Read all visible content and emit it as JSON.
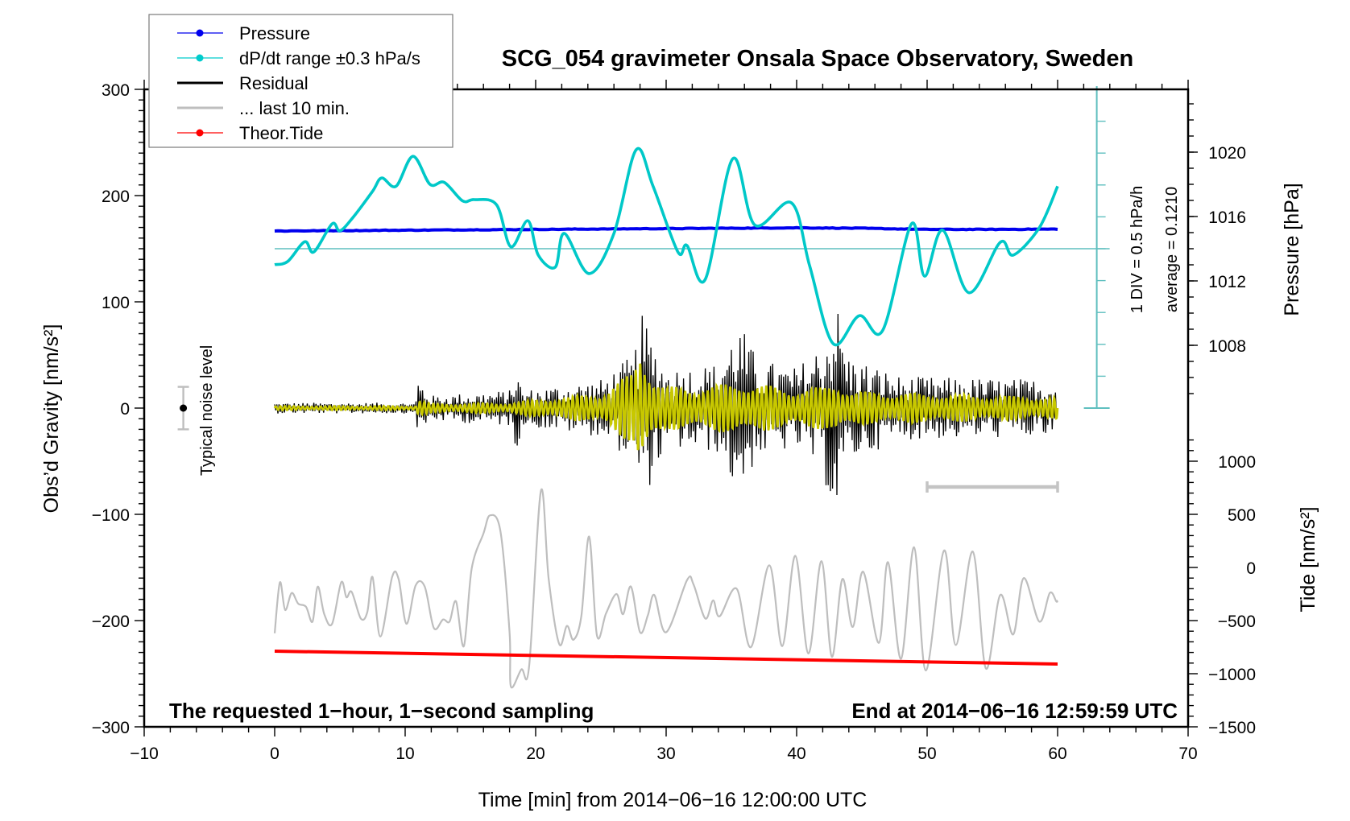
{
  "chart_data": {
    "type": "line",
    "title": "SCG_054 gravimeter Onsala Space Observatory, Sweden",
    "xlabel": "Time [min] from 2014−06−16 12:00:00 UTC",
    "ylabel": "Obs’d Gravity [nm/s²]",
    "ylabel_right_top": "Pressure [hPa]",
    "ylabel_right_bottom": "Tide [nm/s²]",
    "xlim": [
      -10,
      70
    ],
    "ylim": [
      -300,
      300
    ],
    "pressure_lim": [
      1004.5,
      1023.3
    ],
    "tide_lim": [
      -1500,
      1000
    ],
    "grid": false,
    "legend_position": "top-left",
    "x_ticks": [
      -10,
      0,
      10,
      20,
      30,
      40,
      50,
      60,
      70
    ],
    "x_tick_labels": [
      "−10",
      "0",
      "10",
      "20",
      "30",
      "40",
      "50",
      "60",
      "70"
    ],
    "y_ticks": [
      -300,
      -200,
      -100,
      0,
      100,
      200,
      300
    ],
    "y_tick_labels": [
      "−300",
      "−200",
      "−100",
      "0",
      "100",
      "200",
      "300"
    ],
    "pressure_ticks": [
      1008,
      1012,
      1016,
      1020
    ],
    "pressure_tick_labels": [
      "1008",
      "1012",
      "1016",
      "1020"
    ],
    "tide_ticks": [
      -1500,
      -1000,
      -500,
      0,
      500,
      1000
    ],
    "tide_tick_labels": [
      "−1500",
      "−1000",
      "−500",
      "0",
      "500",
      "1000"
    ],
    "legend": [
      {
        "label": "Pressure",
        "color": "#0000ee",
        "marker": "dot"
      },
      {
        "label": "dP/dt range ±0.3 hPa/s",
        "color": "#00cccc",
        "marker": "dot"
      },
      {
        "label": "Residual",
        "color": "#000000",
        "marker": "line"
      },
      {
        "label": "... last 10 min.",
        "color": "#bebebe",
        "marker": "line"
      },
      {
        "label": "Theor.Tide",
        "color": "#ff0000",
        "marker": "dot"
      }
    ],
    "annotations": {
      "bottom_left": "The requested 1−hour, 1−second sampling",
      "bottom_right": "End at 2014−06−16 12:59:59 UTC",
      "dpdt_scale": "1 DIV = 0.5 hPa/h",
      "dpdt_average": "average = 0.1210",
      "noise_label": "Typical noise level"
    },
    "noise_level": {
      "time": -7,
      "value": 0,
      "range": 20
    },
    "scale_bar_minutes": [
      50,
      60
    ],
    "dpdt_axis": {
      "time": 63,
      "div_hpa_per_h": 0.5,
      "divisions": 10,
      "average_line_div": 5
    },
    "series": [
      {
        "name": "Pressure",
        "axis": "pressure",
        "color": "#0000ee",
        "x": [
          0,
          10,
          20,
          30,
          40,
          45,
          50,
          55,
          60
        ],
        "y": [
          1015.1,
          1015.15,
          1015.2,
          1015.25,
          1015.3,
          1015.27,
          1015.2,
          1015.2,
          1015.22
        ]
      },
      {
        "name": "dP/dt",
        "axis": "dpdt_offset_hPa_per_h",
        "color": "#00c8c8",
        "x": [
          0,
          1,
          2.3,
          3,
          4.4,
          5,
          6,
          7.5,
          8.2,
          9.3,
          10.6,
          11.9,
          13,
          14.4,
          15.3,
          17,
          18.1,
          19.4,
          20.2,
          21.5,
          22.2,
          24.1,
          26,
          27.7,
          29,
          30.9,
          31.6,
          33,
          35.1,
          36.8,
          39.6,
          41,
          42.8,
          44.8,
          46.6,
          48.8,
          49.8,
          51.2,
          53.2,
          55.6,
          56.6,
          58.6,
          60
        ],
        "y": [
          -0.25,
          -0.2,
          0.11,
          -0.05,
          0.39,
          0.28,
          0.49,
          0.9,
          1.11,
          0.98,
          1.45,
          1.01,
          1.04,
          0.75,
          0.77,
          0.69,
          0.03,
          0.44,
          -0.1,
          -0.29,
          0.24,
          -0.39,
          0.24,
          1.55,
          0.98,
          -0.05,
          0.05,
          -0.48,
          1.41,
          0.37,
          0.72,
          -0.27,
          -1.49,
          -1.05,
          -1.28,
          0.39,
          -0.43,
          0.29,
          -0.69,
          0.1,
          -0.1,
          0.33,
          0.98
        ]
      },
      {
        "name": "Residual",
        "axis": "gravity",
        "color": "#000000",
        "envelope_x": [
          0,
          10.8,
          11,
          12,
          18,
          18.5,
          19,
          25,
          27.5,
          28.2,
          30,
          34,
          35.5,
          37,
          40,
          42,
          43,
          44,
          48,
          60
        ],
        "envelope_amplitude": [
          6,
          6,
          35,
          14,
          20,
          48,
          20,
          32,
          60,
          105,
          45,
          50,
          100,
          55,
          45,
          75,
          125,
          60,
          35,
          32
        ]
      },
      {
        "name": "Residual (filtered)",
        "axis": "gravity",
        "color": "#c8c800",
        "envelope_x": [
          0,
          10.8,
          11,
          12,
          18,
          20,
          25,
          27.5,
          28,
          29,
          30,
          34,
          35.5,
          40,
          42,
          43,
          44,
          60
        ],
        "envelope_amplitude": [
          2,
          2,
          8,
          4,
          5,
          8,
          14,
          35,
          62,
          30,
          20,
          22,
          25,
          18,
          20,
          26,
          16,
          10
        ]
      },
      {
        "name": "... last 10 min.",
        "axis": "gravity",
        "color": "#bebebe",
        "x": [
          0,
          0.4,
          0.8,
          1.3,
          1.8,
          2.4,
          2.9,
          3.3,
          3.8,
          4.4,
          5.1,
          5.5,
          5.9,
          6.6,
          7.1,
          7.5,
          8.1,
          9.0,
          9.5,
          10.1,
          10.8,
          11.5,
          12.2,
          12.9,
          13.4,
          13.9,
          14.5,
          15.1,
          16.0,
          16.5,
          17.3,
          18.0,
          18.1,
          18.9,
          19.5,
          20.4,
          21.0,
          21.8,
          22.4,
          22.9,
          23.5,
          24.1,
          24.7,
          25.4,
          26.2,
          26.7,
          27.3,
          28.0,
          28.6,
          29.1,
          30.0,
          31.6,
          32.1,
          33.0,
          33.6,
          34.1,
          35.4,
          36.5,
          37.9,
          38.9,
          39.9,
          40.9,
          41.9,
          42.7,
          43.5,
          44.3,
          45.1,
          46.3,
          47.0,
          48.0,
          49.0,
          49.9,
          51.3,
          52.2,
          53.5,
          54.5,
          55.6,
          56.6,
          57.4,
          58.6,
          59.4,
          59.9,
          60
        ],
        "y": [
          -212,
          -164,
          -190,
          -174,
          -184,
          -187,
          -201,
          -168,
          -194,
          -203,
          -164,
          -178,
          -173,
          -198,
          -192,
          -159,
          -215,
          -159,
          -161,
          -203,
          -167,
          -168,
          -207,
          -199,
          -201,
          -182,
          -224,
          -151,
          -118,
          -101,
          -116,
          -211,
          -262,
          -246,
          -243,
          -78,
          -161,
          -222,
          -205,
          -218,
          -196,
          -121,
          -214,
          -193,
          -175,
          -194,
          -168,
          -211,
          -195,
          -176,
          -211,
          -162,
          -166,
          -198,
          -181,
          -196,
          -170,
          -225,
          -148,
          -224,
          -139,
          -231,
          -144,
          -234,
          -161,
          -206,
          -154,
          -221,
          -145,
          -236,
          -131,
          -247,
          -134,
          -223,
          -135,
          -245,
          -176,
          -213,
          -160,
          -201,
          -174,
          -182,
          -181
        ]
      },
      {
        "name": "Theor.Tide",
        "axis": "tide",
        "color": "#ff0000",
        "x": [
          0,
          60
        ],
        "y": [
          -788,
          -909
        ]
      }
    ]
  }
}
